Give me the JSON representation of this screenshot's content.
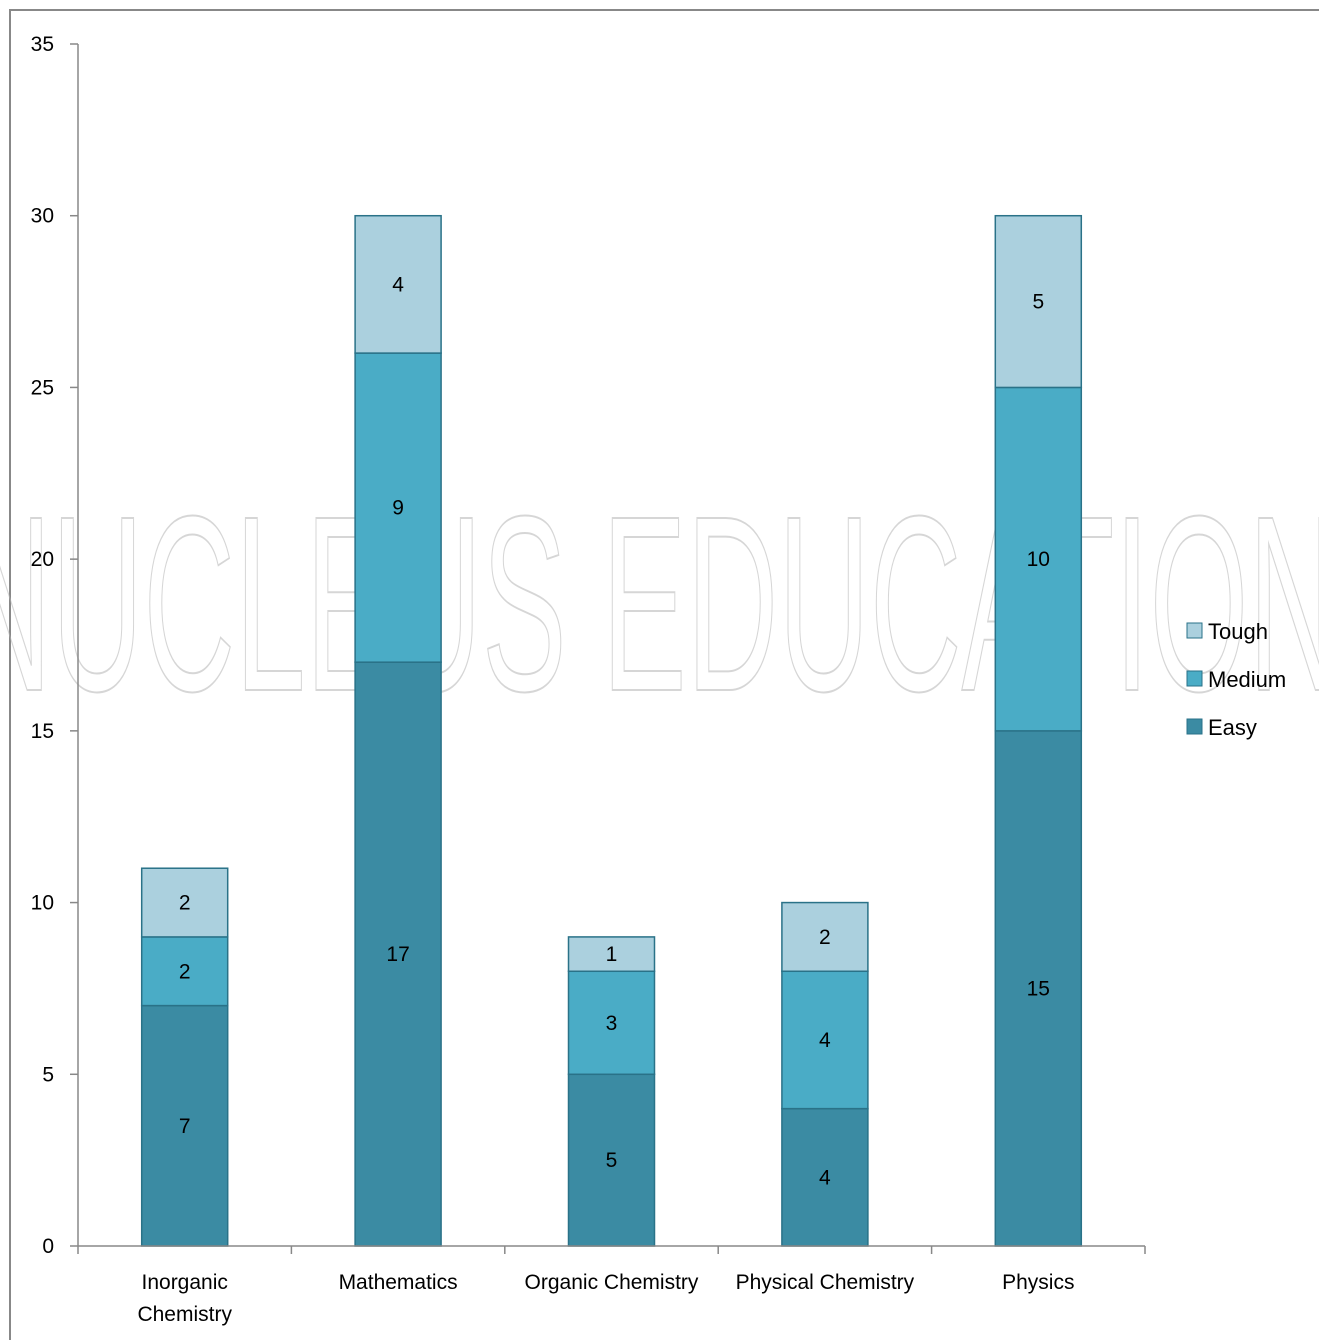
{
  "watermark": "NUCLEUS EDUCATION",
  "chart_data": {
    "type": "bar",
    "stacked": true,
    "categories": [
      [
        "Inorganic",
        "Chemistry"
      ],
      [
        "Mathematics"
      ],
      [
        "Organic Chemistry"
      ],
      [
        "Physical Chemistry"
      ],
      [
        "Physics"
      ]
    ],
    "series": [
      {
        "name": "Easy",
        "values": [
          7,
          17,
          5,
          4,
          15
        ],
        "color": "#3b8ba3"
      },
      {
        "name": "Medium",
        "values": [
          2,
          9,
          3,
          4,
          10
        ],
        "color": "#4aacc6"
      },
      {
        "name": "Tough",
        "values": [
          2,
          4,
          1,
          2,
          5
        ],
        "color": "#abd0de"
      }
    ],
    "legend_order": [
      "Tough",
      "Medium",
      "Easy"
    ],
    "ylim": [
      0,
      35
    ],
    "yticks": [
      0,
      5,
      10,
      15,
      20,
      25,
      30,
      35
    ],
    "grid": false,
    "legend_position": "right"
  }
}
